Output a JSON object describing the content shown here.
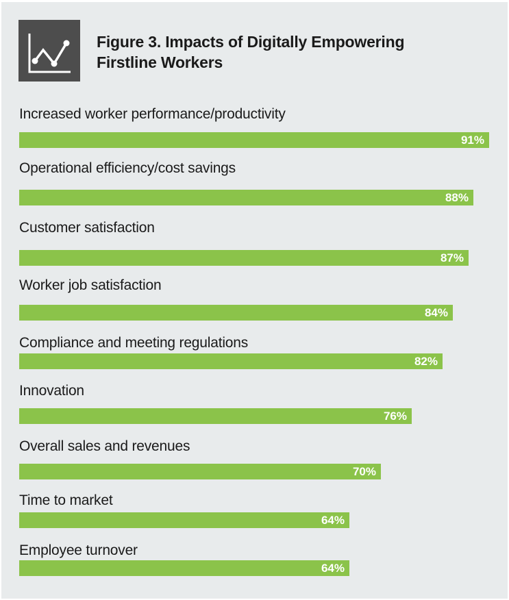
{
  "header": {
    "title_line1": "Figure 3. Impacts of Digitally Empowering",
    "title_line2": "Firstline Workers",
    "icon": "line-chart-icon"
  },
  "colors": {
    "bar": "#8bc34a",
    "panel": "#e8ebec",
    "icon_bg": "#4d4d4d"
  },
  "chart_data": {
    "type": "bar",
    "orientation": "horizontal",
    "title": "Figure 3. Impacts of Digitally Empowering Firstline Workers",
    "categories": [
      "Increased worker performance/productivity",
      "Operational efficiency/cost savings",
      "Customer satisfaction",
      "Worker job satisfaction",
      "Compliance and meeting regulations",
      "Innovation",
      "Overall sales and revenues",
      "Time to market",
      "Employee turnover"
    ],
    "values": [
      91,
      88,
      87,
      84,
      82,
      76,
      70,
      64,
      64
    ],
    "value_labels": [
      "91%",
      "88%",
      "87%",
      "84%",
      "82%",
      "76%",
      "70%",
      "64%",
      "64%"
    ],
    "unit": "%",
    "xlim": [
      0,
      91
    ]
  }
}
